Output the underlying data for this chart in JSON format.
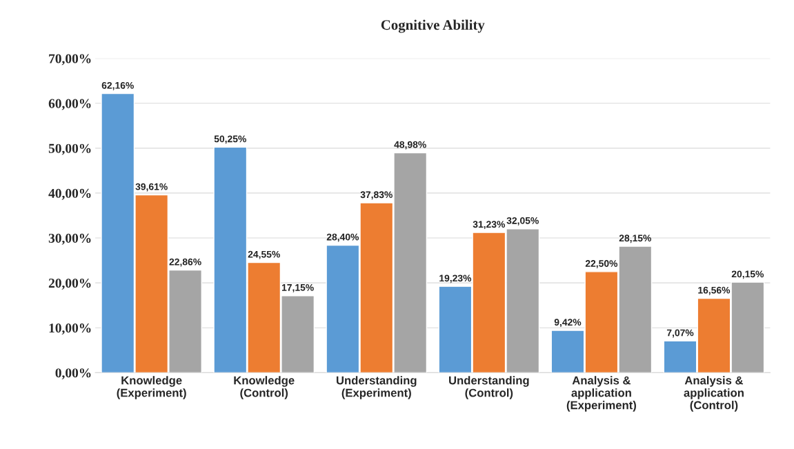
{
  "chart_data": {
    "type": "bar",
    "title": "Cognitive Ability",
    "categories": [
      "Knowledge\n(Experiment)",
      "Knowledge\n(Control)",
      "Understanding\n(Experiment)",
      "Understanding\n(Control)",
      "Analysis &\napplication\n(Experiment)",
      "Analysis &\napplication\n(Control)"
    ],
    "series": [
      {
        "color": "#5b9bd5",
        "values": [
          62.16,
          50.25,
          28.4,
          19.23,
          9.42,
          7.07
        ],
        "value_labels": [
          "62,16%",
          "50,25%",
          "28,40%",
          "19,23%",
          "9,42%",
          "7,07%"
        ]
      },
      {
        "color": "#ed7d31",
        "values": [
          39.61,
          24.55,
          37.83,
          31.23,
          22.5,
          16.56
        ],
        "value_labels": [
          "39,61%",
          "24,55%",
          "37,83%",
          "31,23%",
          "22,50%",
          "16,56%"
        ]
      },
      {
        "color": "#a5a5a5",
        "values": [
          22.86,
          17.15,
          48.98,
          32.05,
          28.15,
          20.15
        ],
        "value_labels": [
          "22,86%",
          "17,15%",
          "48,98%",
          "32,05%",
          "28,15%",
          "20,15%"
        ]
      }
    ],
    "ylim": [
      0,
      70
    ],
    "yticks": [
      {
        "value": 0,
        "label": "0,00%"
      },
      {
        "value": 10,
        "label": "10,00%"
      },
      {
        "value": 20,
        "label": "20,00%"
      },
      {
        "value": 30,
        "label": "30,00%"
      },
      {
        "value": 40,
        "label": "40,00%"
      },
      {
        "value": 50,
        "label": "50,00%"
      },
      {
        "value": 60,
        "label": "60,00%"
      },
      {
        "value": 70,
        "label": "70,00%"
      }
    ],
    "grid": "y"
  }
}
